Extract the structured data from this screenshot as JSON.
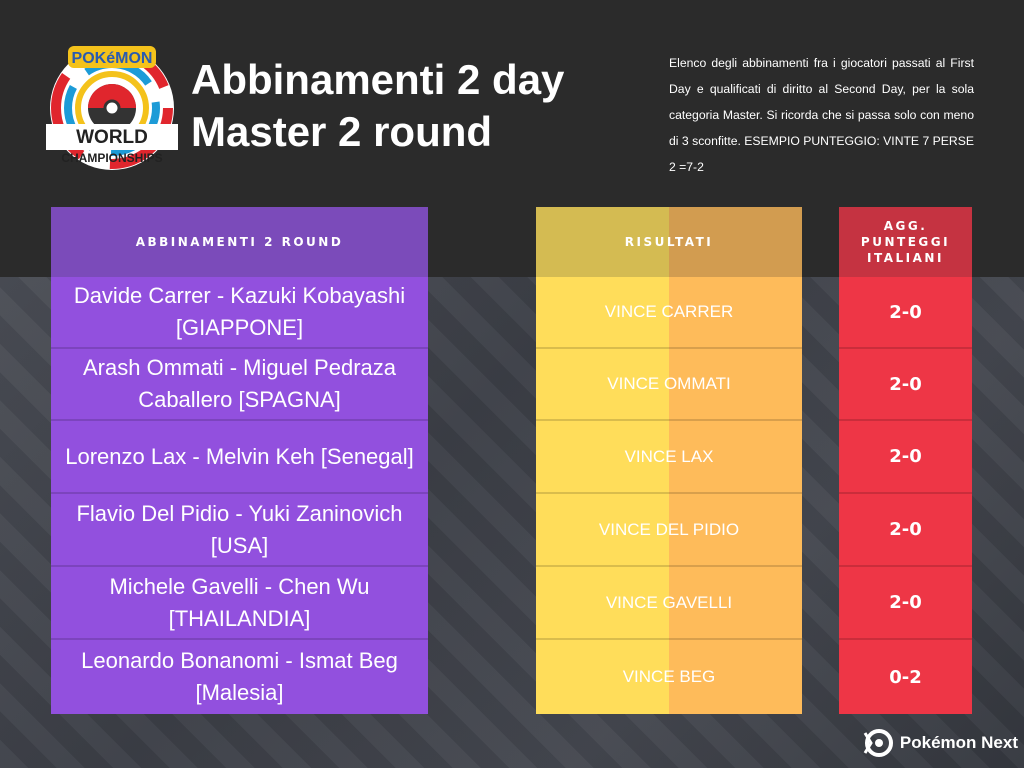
{
  "header": {
    "title_line1": "Abbinamenti 2 day",
    "title_line2": "Master 2 round",
    "description": "Elenco degli abbinamenti fra i giocatori passati al First Day e qualificati di diritto al Second Day, per la sola categoria Master.  Si ricorda che si passa solo con meno di 3 sconfitte. ESEMPIO PUNTEGGIO: VINTE 7 PERSE 2 =7-2",
    "logo_text": "Pokémon World Championships 2019"
  },
  "table": {
    "headers": [
      "ABBINAMENTI 2 ROUND",
      "RISULTATI",
      "AGG. PUNTEGGI ITALIANI"
    ],
    "rows": [
      {
        "match": "Davide Carrer - Kazuki Kobayashi [GIAPPONE]",
        "result": "VINCE CARRER",
        "score": "2-0"
      },
      {
        "match": "Arash Ommati - Miguel Pedraza Caballero [SPAGNA]",
        "result": "VINCE OMMATI",
        "score": "2-0"
      },
      {
        "match": "Lorenzo Lax - Melvin Keh [Senegal]",
        "result": "VINCE LAX",
        "score": "2-0"
      },
      {
        "match": "Flavio Del Pidio - Yuki Zaninovich [USA]",
        "result": "VINCE DEL PIDIO",
        "score": "2-0"
      },
      {
        "match": "Michele Gavelli - Chen Wu [THAILANDIA]",
        "result": "VINCE GAVELLI",
        "score": "2-0"
      },
      {
        "match": "Leonardo Bonanomi - Ismat Beg [Malesia]",
        "result": "VINCE BEG",
        "score": "0-2"
      }
    ]
  },
  "brand": {
    "name": "Pokémon Next"
  },
  "colors": {
    "purple": "#9250de",
    "yellow": "#ffdd5a",
    "orange": "#febb5a",
    "red": "#ee3646"
  }
}
